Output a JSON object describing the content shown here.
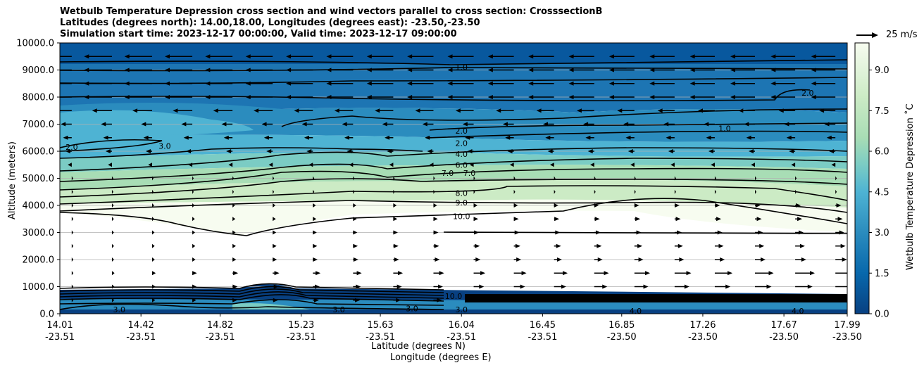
{
  "chart_data": {
    "type": "contour-cross-section",
    "title_lines": [
      "Wetbulb Temperature Depression cross section and wind vectors parallel to cross section: CrosssectionB",
      "Latitudes (degrees north): 14.00,18.00, Longitudes (degrees east): -23.50,-23.50",
      "Simulation start time: 2023-12-17 00:00:00, Valid time: 2023-12-17 09:00:00"
    ],
    "xlabel_lat": "Latitude (degrees N)",
    "xlabel_lon": "Longitude (degrees E)",
    "ylabel": "Altitude (meters)",
    "colorbar_label": "Wetbulb Temperature Depression $^\\circ$C",
    "colorbar_label_display": "Wetbulb Temperature Depression ˚C",
    "quiver_key": "25 m/s",
    "x_ticks_lat": [
      "14.01",
      "14.42",
      "14.82",
      "15.23",
      "15.63",
      "16.04",
      "16.45",
      "16.85",
      "17.26",
      "17.67",
      "17.99"
    ],
    "x_ticks_lon": [
      "-23.51",
      "-23.51",
      "-23.51",
      "-23.51",
      "-23.51",
      "-23.51",
      "-23.51",
      "-23.50",
      "-23.50",
      "-23.50",
      "-23.50"
    ],
    "y_ticks": [
      "0.0",
      "1000.0",
      "2000.0",
      "3000.0",
      "4000.0",
      "5000.0",
      "6000.0",
      "7000.0",
      "8000.0",
      "9000.0",
      "10000.0"
    ],
    "ylim": [
      0,
      10000
    ],
    "colorbar_ticks": [
      "0.0",
      "1.5",
      "3.0",
      "4.5",
      "6.0",
      "7.5",
      "9.0"
    ],
    "colorbar_range": [
      0,
      10
    ],
    "colormap": "GnBu_r",
    "contour_levels": [
      1.0,
      2.0,
      3.0,
      4.0,
      6.0,
      7.0,
      8.0,
      9.0,
      10.0
    ],
    "contour_labels": [
      {
        "text": "1.0",
        "lat": 16.04,
        "alt": 9100
      },
      {
        "text": "2.0",
        "lat": 16.04,
        "alt": 6750
      },
      {
        "text": "2.0",
        "lat": 16.04,
        "alt": 6300
      },
      {
        "text": "4.0",
        "lat": 16.04,
        "alt": 5900
      },
      {
        "text": "6.0",
        "lat": 16.04,
        "alt": 5500
      },
      {
        "text": "7.0",
        "lat": 15.97,
        "alt": 5200
      },
      {
        "text": "7.0",
        "lat": 16.08,
        "alt": 5200
      },
      {
        "text": "8.0",
        "lat": 16.04,
        "alt": 4450
      },
      {
        "text": "9.0",
        "lat": 16.04,
        "alt": 4100
      },
      {
        "text": "10.0",
        "lat": 16.04,
        "alt": 3600
      },
      {
        "text": "2.0",
        "lat": 14.07,
        "alt": 6150
      },
      {
        "text": "3.0",
        "lat": 14.54,
        "alt": 6200
      },
      {
        "text": "2.0",
        "lat": 17.79,
        "alt": 8150
      },
      {
        "text": "1.0",
        "lat": 17.37,
        "alt": 6850
      },
      {
        "text": "10.0",
        "lat": 16.0,
        "alt": 650
      },
      {
        "text": "3.0",
        "lat": 14.31,
        "alt": 150
      },
      {
        "text": "3.0",
        "lat": 15.42,
        "alt": 150
      },
      {
        "text": "3.0",
        "lat": 15.79,
        "alt": 200
      },
      {
        "text": "3.0",
        "lat": 16.04,
        "alt": 150
      },
      {
        "text": "4.0",
        "lat": 16.92,
        "alt": 100
      },
      {
        "text": "4.0",
        "lat": 17.74,
        "alt": 100
      }
    ],
    "wind_summary": "easterly winds (pointing left, ~15-25 m/s) from 5000 m to 10000 m; weak westerly winds (pointing right, increasing toward 17.99N) from 500 m to 4000 m",
    "colors": {
      "dark_blue": "#08589e",
      "mid_blue": "#2b8cbe",
      "light_blue": "#4eb3d3",
      "teal": "#7bccc4",
      "light_green": "#a8ddb5",
      "pale_green": "#ccebc5",
      "near_white": "#f7fcf0"
    }
  }
}
